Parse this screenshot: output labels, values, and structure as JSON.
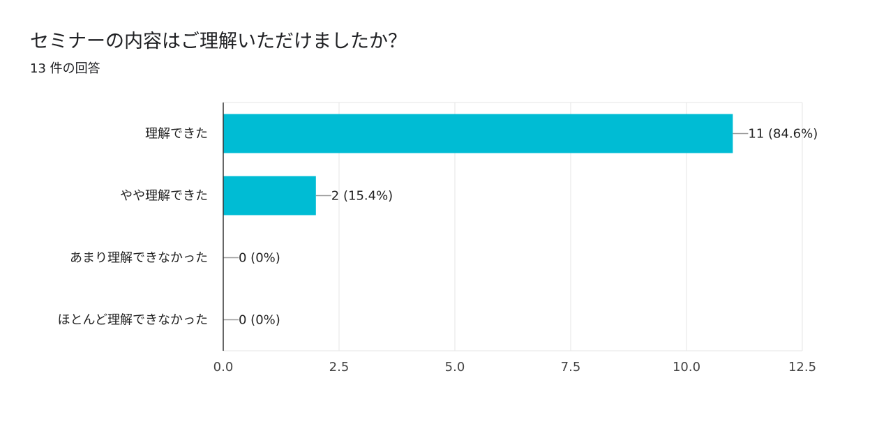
{
  "title": "セミナーの内容はご理解いただけましたか？",
  "subtitle": "13 件の回答",
  "chart_data": {
    "type": "bar",
    "orientation": "horizontal",
    "categories": [
      "理解できた",
      "やや理解できた",
      "あまり理解できなかった",
      "ほとんど理解できなかった"
    ],
    "values": [
      11,
      2,
      0,
      0
    ],
    "value_labels": [
      "11 (84.6%)",
      "2 (15.4%)",
      "0 (0%)",
      "0 (0%)"
    ],
    "xlim": [
      0,
      12.5
    ],
    "xticks": [
      "0.0",
      "2.5",
      "5.0",
      "7.5",
      "10.0",
      "12.5"
    ],
    "xtick_values": [
      0,
      2.5,
      5,
      7.5,
      10,
      12.5
    ],
    "grid": true,
    "legend": "none",
    "colors": {
      "bar": "#00bcd4",
      "grid": "#e6e6e6",
      "axis": "#333333",
      "leader": "#999999"
    }
  }
}
